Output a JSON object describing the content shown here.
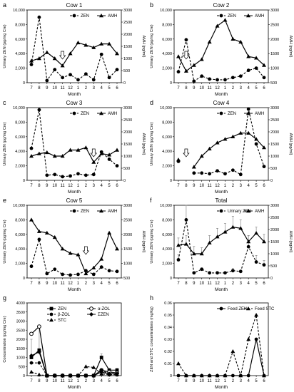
{
  "chart_data": [
    {
      "panel": "a",
      "title": "Cow 1",
      "type": "line",
      "sub_type": "dual-axis",
      "x": [
        "7",
        "8",
        "9",
        "10",
        "11",
        "12",
        "1",
        "2",
        "3",
        "4",
        "5",
        "6"
      ],
      "xlabel": "Month",
      "ylabel_left": "Urinary ZEN (pg/mg Cre)",
      "ylim_left": [
        0,
        10000
      ],
      "yticks_left": [
        "0",
        "2,000",
        "4,000",
        "6,000",
        "8,000",
        "10,000"
      ],
      "ylabel_right": "AMH (pg/ml)",
      "ylim_right": [
        0,
        3000
      ],
      "yticks_right": [
        "0",
        "500",
        "1000",
        "1500",
        "2000",
        "2500",
        "3000"
      ],
      "series": [
        {
          "name": "ZEN",
          "axis": "left",
          "style": "dashed-circle",
          "values": [
            2500,
            9000,
            300,
            1800,
            700,
            1100,
            400,
            1200,
            400,
            3900,
            700,
            1800
          ]
        },
        {
          "name": "AMH",
          "axis": "right",
          "style": "solid-triangle",
          "values": [
            900,
            1000,
            1250,
            1000,
            700,
            1200,
            1650,
            1550,
            1450,
            1600,
            1600,
            1200
          ]
        }
      ],
      "arrow_at": "11"
    },
    {
      "panel": "b",
      "title": "Cow 2",
      "type": "line",
      "sub_type": "dual-axis",
      "x": [
        "7",
        "8",
        "9",
        "10",
        "11",
        "12",
        "1",
        "2",
        "3",
        "4",
        "5",
        "6"
      ],
      "xlabel": "Month",
      "ylabel_left": "Urinary ZEN (pg/mg Cre)",
      "ylim_left": [
        0,
        10000
      ],
      "yticks_left": [
        "0",
        "2,000",
        "4,000",
        "6,000",
        "8,000",
        "10,000"
      ],
      "ylabel_right": "AMH (pg/ml)",
      "ylim_right": [
        500,
        3000
      ],
      "yticks_right": [
        "500",
        "1000",
        "1500",
        "2000",
        "2500",
        "3000"
      ],
      "series": [
        {
          "name": "ZEN",
          "axis": "left",
          "style": "dashed-circle",
          "values": [
            1500,
            5900,
            200,
            900,
            500,
            400,
            400,
            700,
            900,
            1700,
            2000,
            700
          ]
        },
        {
          "name": "AMH",
          "axis": "right",
          "style": "solid-triangle",
          "values": [
            1400,
            900,
            1100,
            1300,
            1900,
            2450,
            2650,
            2000,
            1900,
            1400,
            1350,
            1100
          ]
        }
      ],
      "arrow_at": "8"
    },
    {
      "panel": "c",
      "title": "Cow 3",
      "type": "line",
      "sub_type": "dual-axis",
      "x": [
        "7",
        "8",
        "9",
        "10",
        "11",
        "12",
        "1",
        "2",
        "3",
        "4",
        "5",
        "6"
      ],
      "xlabel": "Month",
      "ylabel_left": "Urinary ZEN (pg/mg Cre)",
      "ylim_left": [
        0,
        10000
      ],
      "yticks_left": [
        "0",
        "2,000",
        "4,000",
        "6,000",
        "8,000",
        "10,000"
      ],
      "ylabel_right": "AMH (pg/ml)",
      "ylim_right": [
        0,
        3000
      ],
      "yticks_right": [
        "0",
        "500",
        "1000",
        "1500",
        "2000",
        "2500",
        "3000"
      ],
      "series": [
        {
          "name": "ZEN",
          "axis": "left",
          "style": "dashed-circle",
          "values": [
            4400,
            9700,
            700,
            800,
            500,
            600,
            900,
            700,
            800,
            3900,
            2900,
            2000
          ]
        },
        {
          "name": "AMH",
          "axis": "right",
          "style": "solid-triangle",
          "values": [
            1000,
            1100,
            1150,
            1000,
            1000,
            1250,
            1250,
            1350,
            750,
            1100,
            1050,
            1250
          ]
        }
      ],
      "arrow_at": "3"
    },
    {
      "panel": "d",
      "title": "Cow 4",
      "type": "line",
      "sub_type": "dual-axis",
      "x": [
        "7",
        "8",
        "9",
        "10",
        "11",
        "12",
        "1",
        "2",
        "3",
        "4",
        "5",
        "6"
      ],
      "xlabel": "Month",
      "ylabel_left": "Urinary ZEN (pg/mg Cre)",
      "ylim_left": [
        0,
        10000
      ],
      "yticks_left": [
        "0",
        "2,000",
        "4,000",
        "6,000",
        "8,000",
        "10,000"
      ],
      "ylabel_right": "AMH (pg/ml)",
      "ylim_right": [
        0,
        3000
      ],
      "yticks_right": [
        "0",
        "500",
        "1000",
        "1500",
        "2000",
        "2500",
        "3000"
      ],
      "series": [
        {
          "name": "ZEN",
          "axis": "left",
          "style": "dashed-circle",
          "values": [
            2600,
            null,
            1000,
            1000,
            900,
            1300,
            900,
            1400,
            800,
            9800,
            5000,
            1900
          ]
        },
        {
          "name": "AMH",
          "axis": "right",
          "style": "solid-triangle",
          "values": [
            850,
            null,
            550,
            1000,
            1300,
            1550,
            1700,
            1800,
            1950,
            1950,
            1700,
            1350
          ]
        }
      ],
      "arrow_at": "8"
    },
    {
      "panel": "e",
      "title": "Cow 5",
      "type": "line",
      "sub_type": "dual-axis",
      "x": [
        "7",
        "8",
        "9",
        "10",
        "11",
        "12",
        "1",
        "2",
        "3",
        "4",
        "5",
        "6"
      ],
      "xlabel": "Month",
      "ylabel_left": "Urinary ZEN (pg/mg Cre)",
      "ylim_left": [
        0,
        10000
      ],
      "yticks_left": [
        "0",
        "2,000",
        "4,000",
        "6,000",
        "8,000",
        "10,000"
      ],
      "ylabel_right": "AMH (pg/ml)",
      "ylim_right": [
        500,
        3000
      ],
      "yticks_right": [
        "500",
        "1000",
        "1500",
        "2000",
        "2500",
        "3000"
      ],
      "series": [
        {
          "name": "ZEN",
          "axis": "left",
          "style": "dashed-circle",
          "values": [
            1600,
            5300,
            600,
            1200,
            500,
            400,
            500,
            1000,
            500,
            1500,
            1000,
            900
          ]
        },
        {
          "name": "AMH",
          "axis": "right",
          "style": "solid-triangle",
          "values": [
            2500,
            2100,
            2050,
            1900,
            1500,
            1350,
            1300,
            650,
            850,
            1150,
            2050,
            1500
          ]
        }
      ],
      "arrow_at": "2"
    },
    {
      "panel": "f",
      "title": "Total",
      "type": "line",
      "sub_type": "dual-axis-errorbars",
      "x": [
        "7",
        "8",
        "9",
        "10",
        "11",
        "12",
        "1",
        "2",
        "3",
        "4",
        "5",
        "6"
      ],
      "xlabel": "Month",
      "ylabel_left": "Urinary ZEN (pg/mg Cre)",
      "ylim_left": [
        0,
        10000
      ],
      "yticks_left": [
        "0",
        "2,000",
        "4,000",
        "6,000",
        "8,000",
        "10,000"
      ],
      "ylabel_right": "AMH (pg/ml)",
      "ylim_right": [
        0,
        3000
      ],
      "yticks_right": [
        "0",
        "500",
        "1000",
        "1500",
        "2000",
        "2500",
        "3000"
      ],
      "series": [
        {
          "name": "Urinary ZEN",
          "axis": "left",
          "style": "dashed-circle",
          "values": [
            2500,
            8000,
            700,
            1200,
            700,
            700,
            700,
            1000,
            900,
            4300,
            2200,
            1800
          ],
          "errors": [
            700,
            2000,
            150,
            200,
            150,
            200,
            150,
            300,
            200,
            1500,
            900,
            600
          ]
        },
        {
          "name": "AMH",
          "axis": "right",
          "style": "solid-triangle",
          "values": [
            1350,
            1400,
            1000,
            1000,
            1450,
            1700,
            1900,
            2100,
            2050,
            1500,
            1850,
            1500
          ],
          "errors": [
            300,
            350,
            300,
            250,
            300,
            350,
            350,
            450,
            350,
            250,
            250,
            300
          ]
        }
      ]
    },
    {
      "panel": "g",
      "title": "",
      "type": "line",
      "sub_type": "multi-series-errorbars",
      "x": [
        "7",
        "8",
        "9",
        "10",
        "11",
        "12",
        "1",
        "2",
        "3",
        "4",
        "5",
        "6"
      ],
      "xlabel": "Month",
      "ylabel": "Concentration (pg/mg Cre)",
      "ylim": [
        0,
        4000
      ],
      "yticks": [
        "0",
        "500",
        "1000",
        "1500",
        "2000",
        "2500",
        "3000",
        "3500",
        "4000"
      ],
      "series": [
        {
          "name": "ZEN",
          "style": "solid-square",
          "values": [
            1000,
            1400,
            0,
            0,
            0,
            0,
            0,
            0,
            0,
            1000,
            300,
            300
          ]
        },
        {
          "name": "α-ZOL",
          "style": "solid-circle-open",
          "values": [
            2300,
            2700,
            0,
            0,
            0,
            0,
            0,
            0,
            0,
            300,
            200,
            150
          ]
        },
        {
          "name": "β-ZOL",
          "style": "dashed-circle",
          "values": [
            700,
            700,
            0,
            0,
            0,
            0,
            0,
            0,
            0,
            300,
            100,
            100
          ]
        },
        {
          "name": "ΣZEN",
          "style": "solid-diamond",
          "values": [
            1100,
            1300,
            0,
            0,
            0,
            0,
            0,
            0,
            0,
            200,
            100,
            100
          ]
        },
        {
          "name": "STC",
          "style": "dashed-triangle",
          "values": [
            200,
            50,
            0,
            0,
            0,
            0,
            0,
            500,
            450,
            100,
            50,
            50
          ]
        }
      ],
      "errors_first_series": [
        1000,
        1300,
        0,
        0,
        0,
        0,
        0,
        0,
        0,
        200,
        100,
        100
      ]
    },
    {
      "panel": "h",
      "title": "",
      "type": "line",
      "sub_type": "two-series",
      "x": [
        "7",
        "8",
        "9",
        "10",
        "11",
        "12",
        "1",
        "2",
        "3",
        "4",
        "5",
        "6"
      ],
      "xlabel": "Month",
      "ylabel": "ZEN and STC concentrations (mg/kg)",
      "ylim": [
        0,
        0.06
      ],
      "yticks": [
        "0",
        "0.01",
        "0.02",
        "0.03",
        "0.04",
        "0.05",
        "0.06"
      ],
      "series": [
        {
          "name": "Feed ZEN",
          "style": "solid-circle",
          "values": [
            0,
            0,
            0,
            0,
            0,
            0,
            0,
            0,
            0,
            0,
            0.03,
            0
          ]
        },
        {
          "name": "Feed STC",
          "style": "dashed-triangle",
          "values": [
            0.01,
            0,
            0,
            0,
            0,
            0,
            0,
            0.02,
            0,
            0.03,
            0.05,
            0
          ]
        }
      ]
    }
  ],
  "panel_letters": [
    "a",
    "b",
    "c",
    "d",
    "e",
    "f",
    "g",
    "h"
  ]
}
